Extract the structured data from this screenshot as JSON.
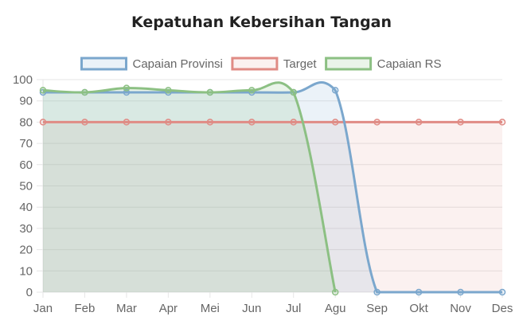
{
  "chart_data": {
    "type": "line",
    "title": "Kepatuhan Kebersihan Tangan",
    "categories": [
      "Jan",
      "Feb",
      "Mar",
      "Apr",
      "Mei",
      "Jun",
      "Jul",
      "Agu",
      "Sep",
      "Okt",
      "Nov",
      "Des"
    ],
    "ylim": [
      0,
      100
    ],
    "yticks": [
      0,
      10,
      20,
      30,
      40,
      50,
      60,
      70,
      80,
      90,
      100
    ],
    "grid": true,
    "legend_position": "top",
    "series": [
      {
        "name": "Capaian Provinsi",
        "color": "#7ba7cd",
        "fill": "rgba(123,167,205,0.15)",
        "values": [
          94,
          94,
          94,
          94,
          94,
          94,
          94,
          95,
          0,
          0,
          0,
          0
        ]
      },
      {
        "name": "Target",
        "color": "#e08b85",
        "fill": "rgba(224,139,133,0.12)",
        "values": [
          80,
          80,
          80,
          80,
          80,
          80,
          80,
          80,
          80,
          80,
          80,
          80
        ]
      },
      {
        "name": "Capaian RS",
        "color": "#8cc083",
        "fill": "rgba(140,192,131,0.18)",
        "values": [
          95,
          94,
          96,
          95,
          94,
          95,
          94,
          0,
          null,
          null,
          null,
          null
        ]
      }
    ]
  }
}
